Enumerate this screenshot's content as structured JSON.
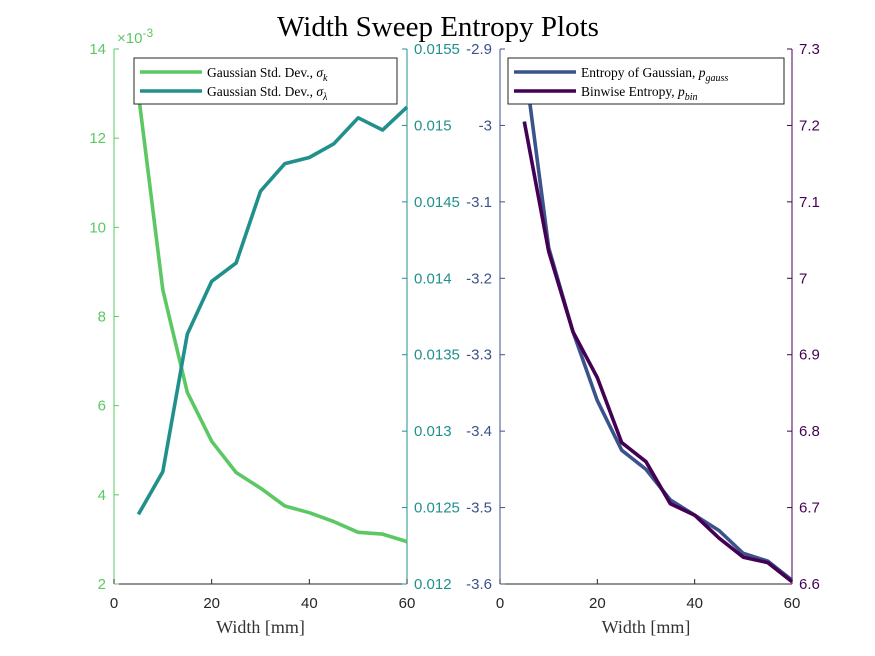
{
  "title": "Width Sweep Entropy Plots",
  "colors": {
    "sigma_k": "#5cc863",
    "sigma_lambda": "#21908d",
    "p_gauss": "#3b528b",
    "p_bin": "#440154",
    "axis": "#262626",
    "xlabel": "#333333"
  },
  "chart_data": [
    {
      "type": "line",
      "panel": "left",
      "xlabel": "Width [mm]",
      "xlim": [
        0,
        60
      ],
      "xticks": [
        "0",
        "20",
        "40",
        "60"
      ],
      "left_axis": {
        "ylim": [
          2,
          14
        ],
        "ticks": [
          "2",
          "4",
          "6",
          "8",
          "10",
          "12",
          "14"
        ],
        "exponent": "×10-3",
        "color": "#5cc863"
      },
      "right_axis": {
        "ylim": [
          0.012,
          0.0155
        ],
        "ticks": [
          "0.012",
          "0.0125",
          "0.013",
          "0.0135",
          "0.014",
          "0.0145",
          "0.015",
          "0.0155"
        ],
        "color": "#21908d"
      },
      "legend": {
        "placement": "top",
        "entries": [
          {
            "text": "Gaussian Std. Dev., ",
            "symbol": "σ",
            "sub": "k",
            "color": "#5cc863"
          },
          {
            "text": "Gaussian Std. Dev., ",
            "symbol": "σ",
            "sub": "λ",
            "color": "#21908d"
          }
        ]
      },
      "series": [
        {
          "axis": "left",
          "color": "#5cc863",
          "x": [
            5,
            10,
            15,
            20,
            25,
            30,
            35,
            40,
            45,
            50,
            55,
            60
          ],
          "y": [
            13.0,
            8.6,
            6.3,
            5.2,
            4.5,
            4.15,
            3.75,
            3.6,
            3.4,
            3.16,
            3.12,
            2.95
          ]
        },
        {
          "axis": "right",
          "color": "#21908d",
          "x": [
            5,
            10,
            15,
            20,
            25,
            30,
            35,
            40,
            45,
            50,
            55,
            60
          ],
          "y": [
            0.012455,
            0.012735,
            0.013635,
            0.01398,
            0.0141,
            0.01457,
            0.01475,
            0.01479,
            0.01488,
            0.01505,
            0.01497,
            0.01512
          ]
        }
      ]
    },
    {
      "type": "line",
      "panel": "right",
      "xlabel": "Width [mm]",
      "xlim": [
        0,
        60
      ],
      "xticks": [
        "0",
        "20",
        "40",
        "60"
      ],
      "left_axis": {
        "ylim": [
          -3.6,
          -2.9
        ],
        "ticks": [
          "-3.6",
          "-3.5",
          "-3.4",
          "-3.3",
          "-3.2",
          "-3.1",
          "-3",
          "-2.9"
        ],
        "color": "#3b528b"
      },
      "right_axis": {
        "ylim": [
          6.6,
          7.3
        ],
        "ticks": [
          "6.6",
          "6.7",
          "6.8",
          "6.9",
          "7",
          "7.1",
          "7.2",
          "7.3"
        ],
        "color": "#440154"
      },
      "legend": {
        "placement": "top",
        "entries": [
          {
            "text": "Entropy of Gaussian, ",
            "symbol": "p",
            "sub": "gauss",
            "color": "#3b528b"
          },
          {
            "text": "Binwise Entropy, ",
            "symbol": "p",
            "sub": "bin",
            "color": "#440154"
          }
        ]
      },
      "series": [
        {
          "axis": "left",
          "color": "#3b528b",
          "x": [
            5,
            10,
            15,
            20,
            25,
            30,
            35,
            40,
            45,
            50,
            55,
            60
          ],
          "y": [
            -2.915,
            -3.16,
            -3.27,
            -3.36,
            -3.425,
            -3.45,
            -3.49,
            -3.51,
            -3.53,
            -3.56,
            -3.57,
            -3.595
          ]
        },
        {
          "axis": "right",
          "color": "#440154",
          "x": [
            5,
            10,
            15,
            20,
            25,
            30,
            35,
            40,
            45,
            50,
            55,
            60
          ],
          "y": [
            7.205,
            7.035,
            6.93,
            6.87,
            6.785,
            6.76,
            6.705,
            6.69,
            6.66,
            6.635,
            6.628,
            6.603
          ]
        }
      ]
    }
  ]
}
